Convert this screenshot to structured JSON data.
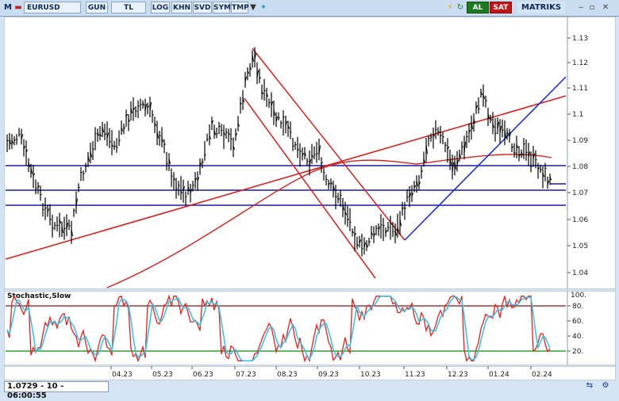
{
  "toolbar": {
    "symbol": "EURUSD",
    "periods": [
      "GUN",
      "TL",
      "LOG",
      "KHN",
      "SVD",
      "SYM",
      "TMP"
    ],
    "buy_label": "AL",
    "sell_label": "SAT",
    "brand": "MATRIKS"
  },
  "main_chart": {
    "yticks": [
      "1.13",
      "1.12",
      "1.11",
      "1.1",
      "1.09",
      "1.08",
      "1.07",
      "1.06",
      "1.05",
      "1.04"
    ]
  },
  "stoch_chart": {
    "title": "Stochastic,Slow",
    "yticks": [
      "80.",
      "60.",
      "40.",
      "20."
    ],
    "top_label": "100."
  },
  "x_axis": {
    "labels": [
      "04.23",
      "05.23",
      "06.23",
      "07.23",
      "08.23",
      "09.23",
      "10.23",
      "11.23",
      "12.23",
      "01.24",
      "02.24"
    ]
  },
  "status": {
    "readout": "1.0729 - 10 - 06:00:55"
  },
  "colors": {
    "price": "#000000",
    "support": "#1a1aa8",
    "trend_red": "#d42020",
    "trend_blue": "#1a2ed0",
    "stoch_k": "#e02020",
    "stoch_d": "#40c0e0",
    "overbought": "#8a1010",
    "oversold": "#0a8a0a"
  }
}
